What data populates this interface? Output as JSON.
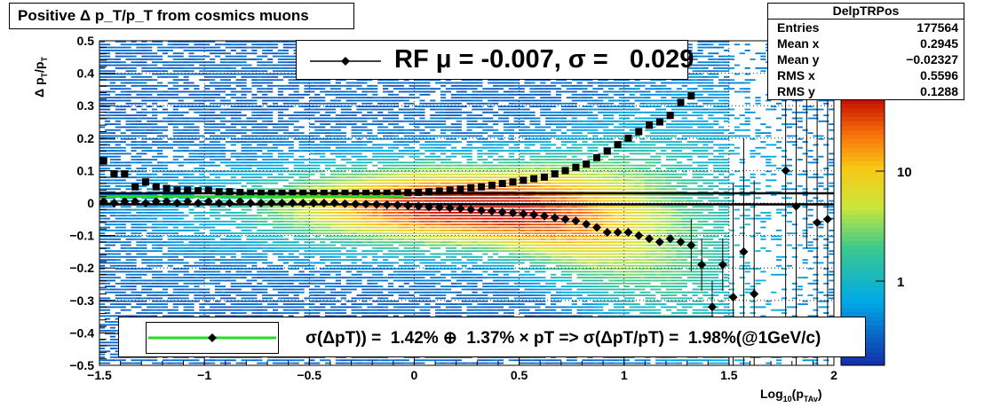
{
  "chart_data": {
    "type": "heatmap",
    "title": "Positive Δ p_T/p_T from cosmics muons",
    "xlabel": "Log10(pTAv)",
    "ylabel": "Δ pT/pT",
    "xlim": [
      -1.5,
      2.0
    ],
    "ylim": [
      -0.5,
      0.5
    ],
    "xticks": [
      -1.5,
      -1,
      -0.5,
      0,
      0.5,
      1,
      1.5,
      2
    ],
    "xtick_labels": [
      "−1.5",
      "−1",
      "−0.5",
      "0",
      "0.5",
      "1",
      "1.5",
      "2"
    ],
    "yticks": [
      -0.5,
      -0.4,
      -0.3,
      -0.2,
      -0.1,
      0,
      0.1,
      0.2,
      0.3,
      0.4,
      0.5
    ],
    "ytick_labels": [
      "−0.5",
      "−0.4",
      "−0.3",
      "−0.2",
      "−0.1",
      "0",
      "0.1",
      "0.2",
      "0.3",
      "0.4",
      "0.5"
    ],
    "color_scale": "log",
    "colorbar_labels": [
      "1",
      "10"
    ],
    "grid": true,
    "series": [
      {
        "marker": "square",
        "x": [
          -1.48,
          -1.43,
          -1.38,
          -1.33,
          -1.28,
          -1.23,
          -1.18,
          -1.13,
          -1.08,
          -1.03,
          -0.98,
          -0.93,
          -0.88,
          -0.83,
          -0.78,
          -0.73,
          -0.68,
          -0.63,
          -0.58,
          -0.53,
          -0.48,
          -0.43,
          -0.38,
          -0.33,
          -0.28,
          -0.23,
          -0.18,
          -0.13,
          -0.08,
          -0.03,
          0.02,
          0.07,
          0.12,
          0.17,
          0.22,
          0.27,
          0.32,
          0.37,
          0.42,
          0.47,
          0.52,
          0.57,
          0.62,
          0.67,
          0.72,
          0.77,
          0.82,
          0.87,
          0.92,
          0.97,
          1.02,
          1.07,
          1.12,
          1.17,
          1.22,
          1.27,
          1.32
        ],
        "y": [
          0.13,
          0.09,
          0.09,
          0.05,
          0.065,
          0.05,
          0.045,
          0.04,
          0.04,
          0.038,
          0.04,
          0.035,
          0.035,
          0.033,
          0.03,
          0.03,
          0.03,
          0.03,
          0.03,
          0.03,
          0.03,
          0.03,
          0.03,
          0.03,
          0.03,
          0.03,
          0.03,
          0.03,
          0.031,
          0.032,
          0.033,
          0.035,
          0.037,
          0.04,
          0.043,
          0.047,
          0.05,
          0.055,
          0.06,
          0.065,
          0.07,
          0.075,
          0.08,
          0.09,
          0.1,
          0.11,
          0.12,
          0.14,
          0.16,
          0.18,
          0.2,
          0.22,
          0.24,
          0.25,
          0.27,
          0.31,
          0.33
        ]
      },
      {
        "marker": "diamond",
        "x": [
          -1.48,
          -1.43,
          -1.38,
          -1.33,
          -1.28,
          -1.23,
          -1.18,
          -1.13,
          -1.08,
          -1.03,
          -0.98,
          -0.93,
          -0.88,
          -0.83,
          -0.78,
          -0.73,
          -0.68,
          -0.63,
          -0.58,
          -0.53,
          -0.48,
          -0.43,
          -0.38,
          -0.33,
          -0.28,
          -0.23,
          -0.18,
          -0.13,
          -0.08,
          -0.03,
          0.02,
          0.07,
          0.12,
          0.17,
          0.22,
          0.27,
          0.32,
          0.37,
          0.42,
          0.47,
          0.52,
          0.57,
          0.62,
          0.67,
          0.72,
          0.77,
          0.82,
          0.87,
          0.92,
          0.97,
          1.02,
          1.07,
          1.12,
          1.17,
          1.22,
          1.27,
          1.32,
          1.37,
          1.42,
          1.47,
          1.52,
          1.57,
          1.62,
          1.77,
          1.82,
          1.87,
          1.92,
          1.97
        ],
        "y": [
          0.005,
          0.0,
          0.005,
          0.005,
          0.0,
          0.005,
          0.005,
          0.0,
          0.005,
          0.0,
          0.005,
          0.0,
          0.0,
          0.005,
          0.0,
          0.0,
          0.0,
          0.0,
          0.0,
          0.0,
          0.0,
          0.0,
          0.0,
          -0.002,
          -0.003,
          -0.003,
          -0.004,
          -0.005,
          -0.006,
          -0.008,
          -0.01,
          -0.012,
          -0.013,
          -0.015,
          -0.017,
          -0.02,
          -0.023,
          -0.025,
          -0.028,
          -0.03,
          -0.033,
          -0.036,
          -0.04,
          -0.045,
          -0.05,
          -0.055,
          -0.065,
          -0.075,
          -0.09,
          -0.09,
          -0.09,
          -0.1,
          -0.11,
          -0.12,
          -0.11,
          -0.12,
          -0.13,
          -0.19,
          -0.32,
          -0.19,
          -0.29,
          -0.15,
          -0.28,
          0.1,
          -0.01,
          0.36,
          -0.06,
          -0.05
        ]
      }
    ],
    "fit_curve": {
      "color": "#22dd22",
      "description": "green fit curve"
    },
    "horizontal_lines": [
      0.03,
      -0.004
    ]
  },
  "title": "Positive Δ p_T/p_T from cosmics muons",
  "axis": {
    "ylabel_main": "Δ p",
    "ylabel_sub": "T",
    "ylabel_main2": "/p",
    "ylabel_sub2": "T",
    "xlabel_main": "Log",
    "xlabel_sub": "10",
    "xlabel_main2": "(p",
    "xlabel_sub2": "TAv",
    "xlabel_main3": ")"
  },
  "stats": {
    "title": "DelpTRPos",
    "rows": [
      {
        "label": "Entries",
        "value": "177564"
      },
      {
        "label": "Mean x",
        "value": "0.2945"
      },
      {
        "label": "Mean y",
        "value": "−0.02327"
      },
      {
        "label": "RMS x",
        "value": "0.5596"
      },
      {
        "label": "RMS y",
        "value": "0.1288"
      }
    ]
  },
  "legend_top": {
    "text": "RF μ = -0.007, σ =   0.029"
  },
  "legend_bottom": {
    "text": "σ(ΔpT)) =  1.42% ⊕  1.37% × pT => σ(ΔpT/pT) =  1.98%(@1GeV/c)"
  },
  "colors": {
    "fit": "#22dd22",
    "markers": "#000000"
  }
}
